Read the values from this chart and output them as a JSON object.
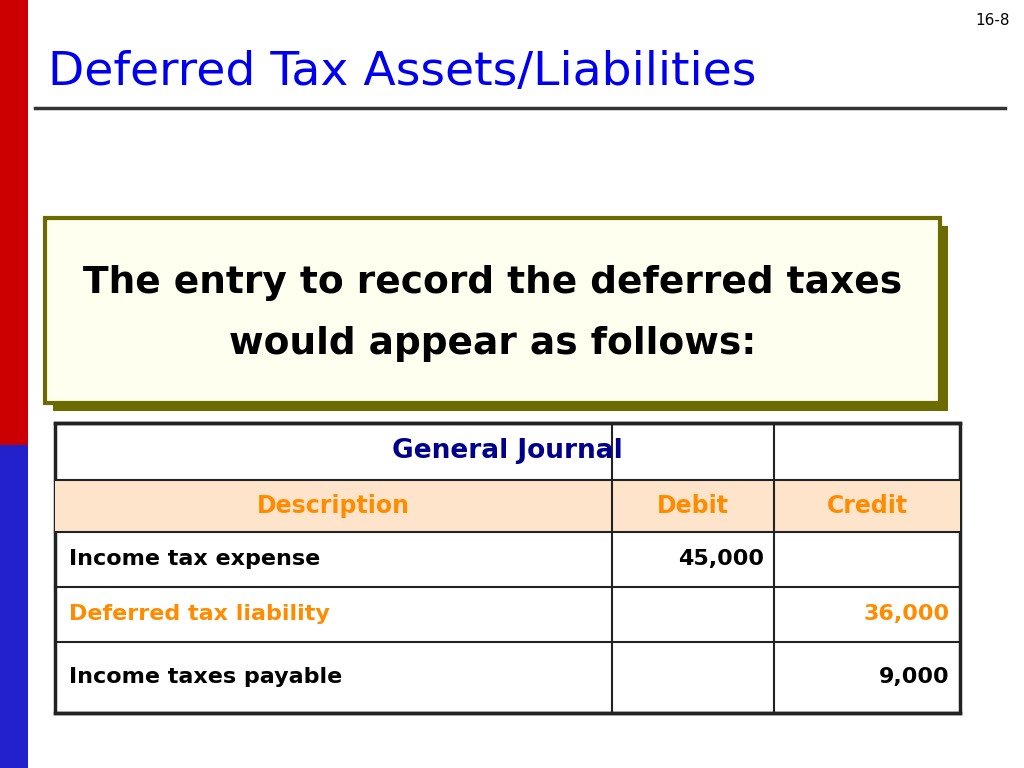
{
  "title": "Deferred Tax Assets/Liabilities",
  "title_color": "#0000EE",
  "page_num": "16-8",
  "background_color": "#FFFFFF",
  "highlight_box_text_line1": "The entry to record the deferred taxes",
  "highlight_box_text_line2": "would appear as follows:",
  "highlight_box_bg": "#FFFFF0",
  "highlight_box_border": "#6B6B00",
  "highlight_shadow_color": "#6B6B00",
  "table_title": "General Journal",
  "table_title_color": "#00008B",
  "table_header_bg": "#FFE4CC",
  "table_header_text_color": "#FF8C00",
  "table_border_color": "#222222",
  "col_headers": [
    "Description",
    "Debit",
    "Credit"
  ],
  "rows": [
    [
      "Income tax expense",
      "45,000",
      ""
    ],
    [
      "Deferred tax liability",
      "",
      "36,000"
    ],
    [
      "Income taxes payable",
      "",
      "9,000"
    ]
  ],
  "row_colors_desc": [
    "#000000",
    "#FF8C00",
    "#000000"
  ],
  "row_colors_credit": [
    "#000000",
    "#FF8C00",
    "#000000"
  ]
}
